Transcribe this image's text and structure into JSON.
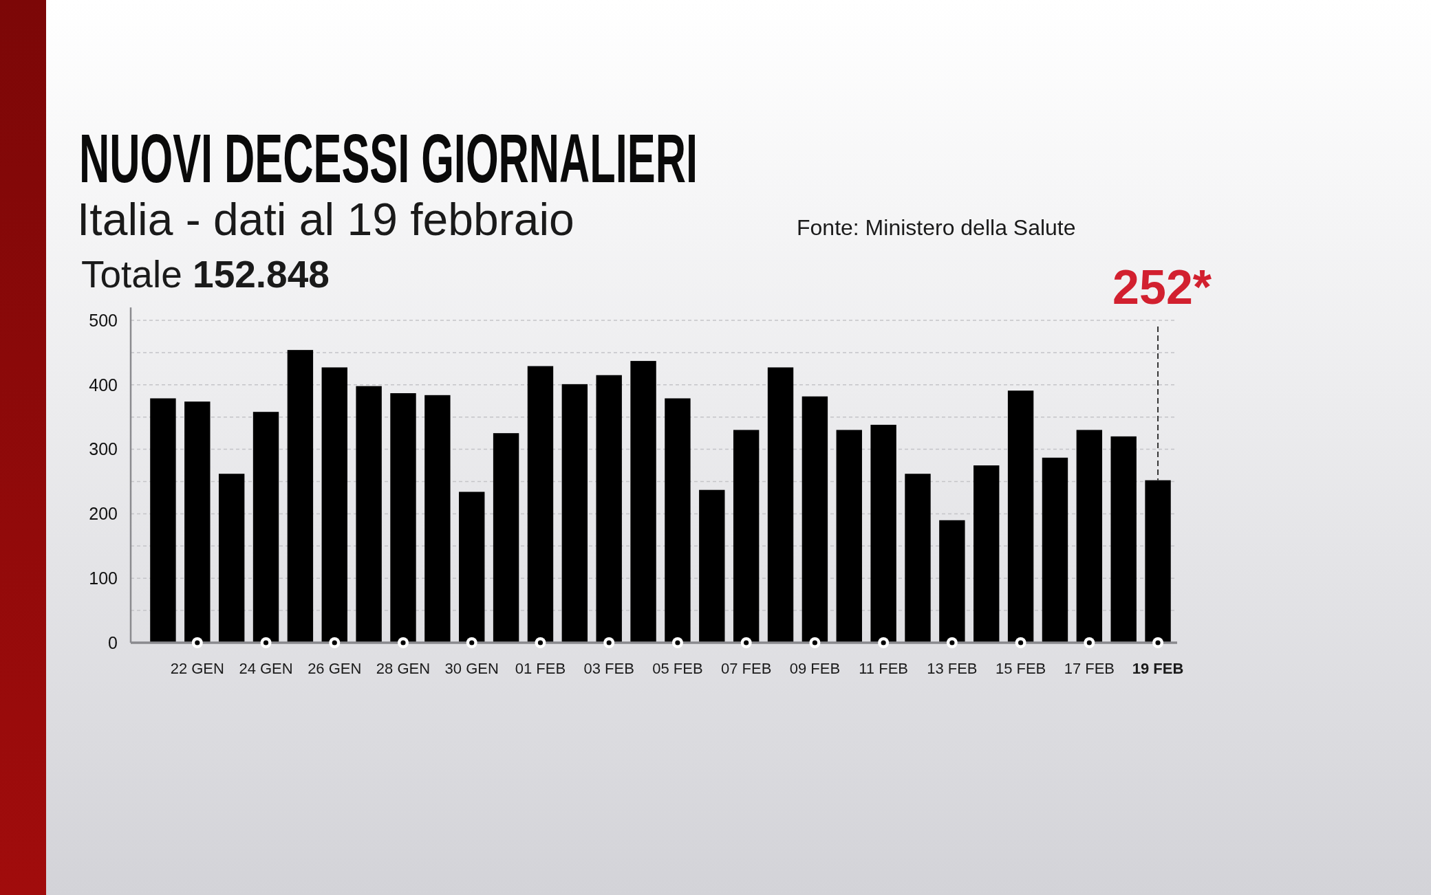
{
  "chart_data": {
    "type": "bar",
    "title": "NUOVI DECESSI GIORNALIERI",
    "subtitle": "Italia - dati al 19 febbraio",
    "annotations": [
      "Totale 152.848",
      "Fonte: Ministero della Salute",
      {
        "text": "252*",
        "x": "19 FEB",
        "y": 252
      }
    ],
    "categories": [
      null,
      "22 GEN",
      null,
      "24 GEN",
      null,
      "26 GEN",
      null,
      "28 GEN",
      null,
      "30 GEN",
      null,
      "01 FEB",
      null,
      "03 FEB",
      null,
      "05 FEB",
      null,
      "07 FEB",
      null,
      "09 FEB",
      null,
      "11 FEB",
      null,
      "13 FEB",
      null,
      "15 FEB",
      null,
      "17 FEB",
      null,
      "19 FEB"
    ],
    "values": [
      379,
      374,
      262,
      358,
      454,
      427,
      398,
      387,
      384,
      234,
      325,
      429,
      401,
      415,
      437,
      379,
      237,
      330,
      427,
      382,
      330,
      338,
      262,
      190,
      275,
      391,
      287,
      330,
      320,
      252
    ],
    "color": "#000000",
    "ylim": [
      0,
      520
    ],
    "yticks": [
      0,
      {
        "value": 50,
        "label": null
      },
      100,
      {
        "value": 150,
        "label": null
      },
      200,
      {
        "value": 250,
        "label": null
      },
      300,
      {
        "value": 350,
        "label": null
      },
      400,
      {
        "value": 450,
        "label": null
      },
      500
    ],
    "grid": "y"
  }
}
